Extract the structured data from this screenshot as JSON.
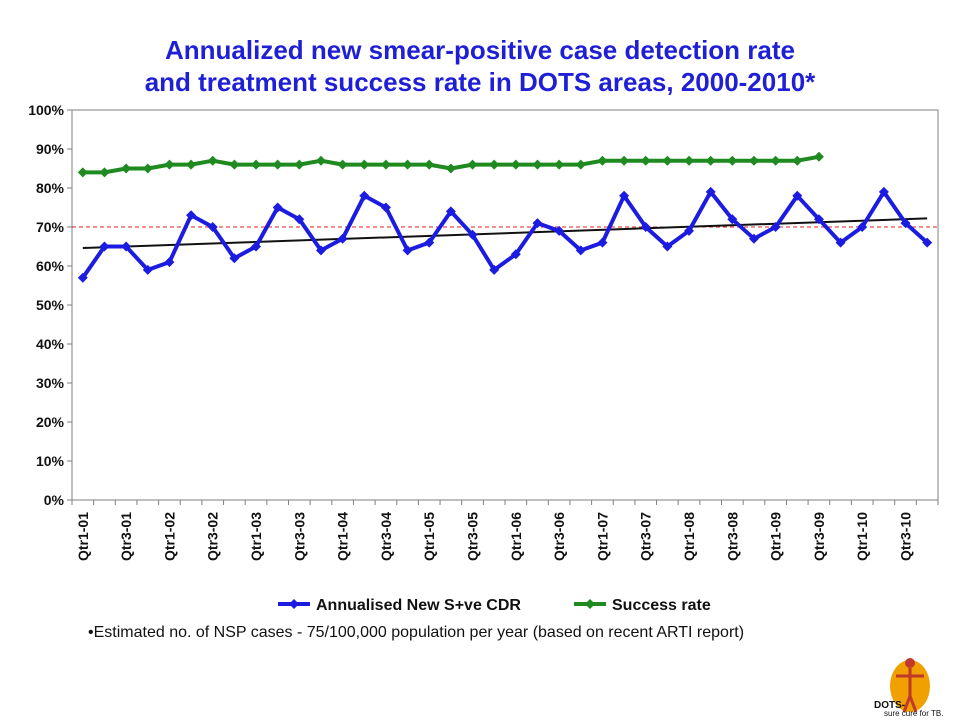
{
  "chart_data": {
    "type": "line",
    "title_line1": "Annualized new smear-positive case detection rate",
    "title_line2": "and treatment success rate in DOTS areas, 2000-2010*",
    "y_ticks": [
      "0%",
      "10%",
      "20%",
      "30%",
      "40%",
      "50%",
      "60%",
      "70%",
      "80%",
      "90%",
      "100%"
    ],
    "ylim": [
      0,
      100
    ],
    "x_labels": [
      "Qtr1-01",
      "Qtr3-01",
      "Qtr1-02",
      "Qtr3-02",
      "Qtr1-03",
      "Qtr3-03",
      "Qtr1-04",
      "Qtr3-04",
      "Qtr1-05",
      "Qtr3-05",
      "Qtr1-06",
      "Qtr3-06",
      "Qtr1-07",
      "Qtr3-07",
      "Qtr1-08",
      "Qtr3-08",
      "Qtr1-09",
      "Qtr3-09",
      "Qtr1-10",
      "Qtr3-10"
    ],
    "num_quarters": 40,
    "series": [
      {
        "name": "Annualised New S+ve CDR",
        "color": "#1c1ce0",
        "values": [
          57,
          65,
          65,
          59,
          61,
          73,
          70,
          62,
          65,
          75,
          72,
          64,
          67,
          78,
          75,
          64,
          66,
          74,
          68,
          59,
          63,
          71,
          69,
          64,
          66,
          78,
          70,
          65,
          69,
          79,
          72,
          67,
          70,
          78,
          72,
          66,
          70,
          79,
          71,
          66
        ]
      },
      {
        "name": "Success rate",
        "color": "#1f8a1f",
        "values": [
          84,
          84,
          85,
          85,
          86,
          86,
          87,
          86,
          86,
          86,
          86,
          87,
          86,
          86,
          86,
          86,
          86,
          85,
          86,
          86,
          86,
          86,
          86,
          86,
          87,
          87,
          87,
          87,
          87,
          87,
          87,
          87,
          87,
          87,
          88
        ]
      }
    ],
    "trendline": {
      "color": "#111111",
      "start": 64.6,
      "end": 72.2
    },
    "target_line": {
      "value": 70,
      "color": "#e02020",
      "style": "dashed"
    },
    "grid": false,
    "legend_position": "bottom"
  },
  "footnote": "•Estimated no. of NSP cases - 75/100,000 population per year (based on recent ARTI report)",
  "logo": {
    "text": "DOTS-",
    "subtext": "sure cure for TB.",
    "color": "#f0a000"
  }
}
